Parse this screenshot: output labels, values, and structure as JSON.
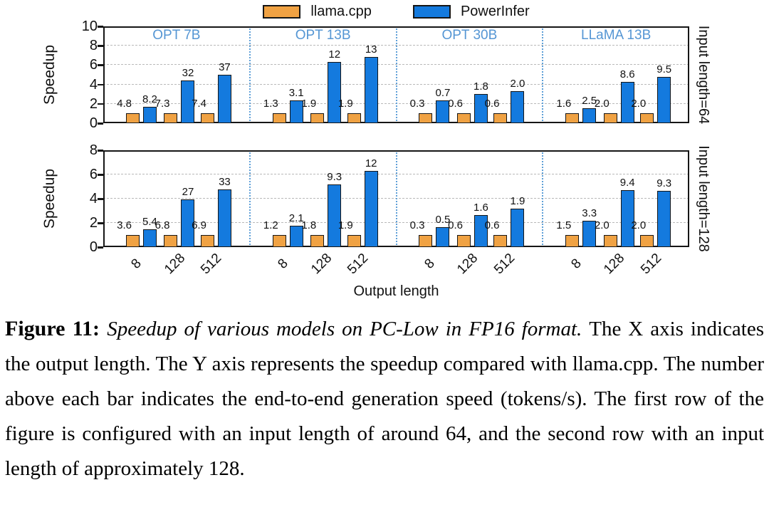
{
  "colors": {
    "llama_cpp": "#F0A243",
    "powerinfer": "#147ADE",
    "panel_title": "#5596D4",
    "separator": "#5FA0D8",
    "grid": "#BBBBBB",
    "frame": "#161616"
  },
  "legend": {
    "llama_label": "llama.cpp",
    "power_label": "PowerInfer"
  },
  "chart_data": {
    "type": "bar",
    "xlabel": "Output length",
    "categories": [
      "8",
      "128",
      "512"
    ],
    "series_names": [
      "llama.cpp",
      "PowerInfer"
    ],
    "note": "bars = speedup vs llama.cpp (llama.cpp bar = 1); numbers above bars = end-to-end generation speed in tokens/s",
    "rows": [
      {
        "row_label": "Input length=64",
        "ylabel": "Speedup",
        "ylim": [
          0,
          10
        ],
        "yticks": [
          0,
          2,
          4,
          6,
          8,
          10
        ],
        "titles_visible": true,
        "panels": [
          {
            "model": "OPT 7B",
            "llama_speedup": [
              1,
              1,
              1
            ],
            "power_speedup": [
              1.71,
              4.38,
              5.0
            ],
            "llama_tokens_per_s": [
              "4.8",
              "7.3",
              "7.4"
            ],
            "power_tokens_per_s": [
              "8.2",
              "32",
              "37"
            ]
          },
          {
            "model": "OPT 13B",
            "llama_speedup": [
              1,
              1,
              1
            ],
            "power_speedup": [
              2.38,
              6.32,
              6.84
            ],
            "llama_tokens_per_s": [
              "1.3",
              "1.9",
              "1.9"
            ],
            "power_tokens_per_s": [
              "3.1",
              "12",
              "13"
            ]
          },
          {
            "model": "OPT 30B",
            "llama_speedup": [
              1,
              1,
              1
            ],
            "power_speedup": [
              2.33,
              3.0,
              3.33
            ],
            "llama_tokens_per_s": [
              "0.3",
              "0.6",
              "0.6"
            ],
            "power_tokens_per_s": [
              "0.7",
              "1.8",
              "2.0"
            ]
          },
          {
            "model": "LLaMA 13B",
            "llama_speedup": [
              1,
              1,
              1
            ],
            "power_speedup": [
              1.56,
              4.3,
              4.75
            ],
            "llama_tokens_per_s": [
              "1.6",
              "2.0",
              "2.0"
            ],
            "power_tokens_per_s": [
              "2.5",
              "8.6",
              "9.5"
            ]
          }
        ]
      },
      {
        "row_label": "Input length=128",
        "ylabel": "Speedup",
        "ylim": [
          0,
          8
        ],
        "yticks": [
          0,
          2,
          4,
          6,
          8
        ],
        "titles_visible": false,
        "panels": [
          {
            "model": "OPT 7B",
            "llama_speedup": [
              1,
              1,
              1
            ],
            "power_speedup": [
              1.5,
              3.97,
              4.78
            ],
            "llama_tokens_per_s": [
              "3.6",
              "6.8",
              "6.9"
            ],
            "power_tokens_per_s": [
              "5.4",
              "27",
              "33"
            ]
          },
          {
            "model": "OPT 13B",
            "llama_speedup": [
              1,
              1,
              1
            ],
            "power_speedup": [
              1.75,
              5.17,
              6.32
            ],
            "llama_tokens_per_s": [
              "1.2",
              "1.8",
              "1.9"
            ],
            "power_tokens_per_s": [
              "2.1",
              "9.3",
              "12"
            ]
          },
          {
            "model": "OPT 30B",
            "llama_speedup": [
              1,
              1,
              1
            ],
            "power_speedup": [
              1.67,
              2.67,
              3.17
            ],
            "llama_tokens_per_s": [
              "0.3",
              "0.6",
              "0.6"
            ],
            "power_tokens_per_s": [
              "0.5",
              "1.6",
              "1.9"
            ]
          },
          {
            "model": "LLaMA 13B",
            "llama_speedup": [
              1,
              1,
              1
            ],
            "power_speedup": [
              2.2,
              4.7,
              4.65
            ],
            "llama_tokens_per_s": [
              "1.5",
              "2.0",
              "2.0"
            ],
            "power_tokens_per_s": [
              "3.3",
              "9.4",
              "9.3"
            ]
          }
        ]
      }
    ]
  },
  "caption": {
    "label": "Figure 11: ",
    "italic": "Speedup of various models on PC-Low in FP16 format. ",
    "text": "The X axis indicates the output length. The Y axis represents the speedup compared with llama.cpp. The number above each bar indicates the end-to-end generation speed (tokens/s). The first row of the figure is configured with an input length of around 64, and the second row with an input length of approximately 128."
  }
}
